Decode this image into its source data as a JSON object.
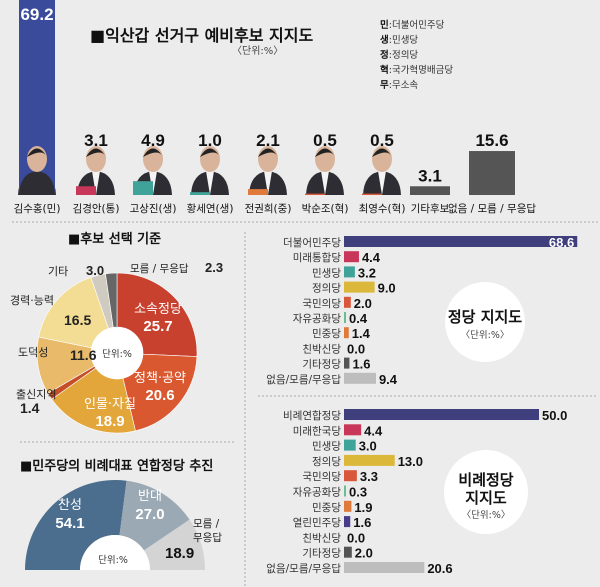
{
  "candidates_chart": {
    "title": "■익산갑 선거구 예비후보 지지도",
    "unit": "〈단위:%〉",
    "legend": [
      {
        "abbr": "민",
        "party": "더불어민주당"
      },
      {
        "abbr": "생",
        "party": "민생당"
      },
      {
        "abbr": "정",
        "party": "정의당"
      },
      {
        "abbr": "혁",
        "party": "국가혁명배금당"
      },
      {
        "abbr": "무",
        "party": "무소속"
      }
    ]
  },
  "criteria_chart": {
    "title": "■후보 선택 기준",
    "unit": "단위:%"
  },
  "party_chart": {
    "title": "정당 지지도",
    "unit": "〈단위:%〉"
  },
  "pr_chart": {
    "title_line1": "비례정당",
    "title_line2": "지지도",
    "unit": "〈단위:%〉"
  },
  "coalition_chart": {
    "title": "■민주당의 비례대표 연합정당 추진",
    "unit": "단위:%"
  },
  "chart_data": [
    {
      "type": "bar",
      "title": "■익산갑 선거구 예비후보 지지도",
      "categories": [
        "김수홍(민)",
        "김경안(통)",
        "고상진(생)",
        "황세연(생)",
        "전권희(중)",
        "박순조(혁)",
        "최영수(혁)",
        "기타후보",
        "없음 / 모름 / 무응답"
      ],
      "values": [
        69.2,
        3.1,
        4.9,
        1.0,
        2.1,
        0.5,
        0.5,
        3.1,
        15.6
      ],
      "labels": [
        "69.2",
        "3.1",
        "4.9",
        "1.0",
        "2.1",
        "0.5",
        "0.5",
        "3.1",
        "15.6"
      ],
      "colors": [
        "#3b4b9c",
        "#c8375a",
        "#3fa39a",
        "#3fa39a",
        "#e07a3a",
        "#d9573a",
        "#d9573a",
        "#555555",
        "#555555"
      ],
      "has_photo": [
        true,
        true,
        true,
        true,
        true,
        true,
        true,
        false,
        false
      ]
    },
    {
      "type": "pie",
      "title": "■후보 선택 기준",
      "categories": [
        "소속정당",
        "정책·공약",
        "인물·자질",
        "출신지역",
        "도덕성",
        "경력·능력",
        "기타",
        "모름 / 무응답"
      ],
      "values": [
        25.7,
        20.6,
        18.9,
        1.4,
        11.6,
        16.5,
        3.0,
        2.3
      ],
      "labels": [
        "25.7",
        "20.6",
        "18.9",
        "1.4",
        "11.6",
        "16.5",
        "3.0",
        "2.3"
      ],
      "colors": [
        "#c8402e",
        "#d9582f",
        "#e3a63b",
        "#c4502a",
        "#e9ba6a",
        "#f3dc93",
        "#cfcbc0",
        "#666666"
      ]
    },
    {
      "type": "bar",
      "orientation": "horizontal",
      "title": "정당 지지도",
      "categories": [
        "더불어민주당",
        "미래통합당",
        "민생당",
        "정의당",
        "국민의당",
        "자유공화당",
        "민중당",
        "친박신당",
        "기타정당",
        "없음/모름/무응답"
      ],
      "values": [
        68.6,
        4.4,
        3.2,
        9.0,
        2.0,
        0.4,
        1.4,
        0.0,
        1.6,
        9.4
      ],
      "labels": [
        "68.6",
        "4.4",
        "3.2",
        "9.0",
        "2.0",
        "0.4",
        "1.4",
        "0.0",
        "1.6",
        "9.4"
      ],
      "colors": [
        "#3f3f7e",
        "#c8375a",
        "#3fa39a",
        "#dcb83a",
        "#d9573a",
        "#6bbf8f",
        "#e07a3a",
        "#888888",
        "#555555",
        "#bdbdbd"
      ]
    },
    {
      "type": "bar",
      "orientation": "horizontal",
      "title": "비례정당 지지도",
      "categories": [
        "비례연합정당",
        "미래한국당",
        "민생당",
        "정의당",
        "국민의당",
        "자유공화당",
        "민중당",
        "열린민주당",
        "친박신당",
        "기타정당",
        "없음/모름/무응답"
      ],
      "values": [
        50.0,
        4.4,
        3.0,
        13.0,
        3.3,
        0.3,
        1.9,
        1.6,
        0.0,
        2.0,
        20.6
      ],
      "labels": [
        "50.0",
        "4.4",
        "3.0",
        "13.0",
        "3.3",
        "0.3",
        "1.9",
        "1.6",
        "0.0",
        "2.0",
        "20.6"
      ],
      "colors": [
        "#3f3f7e",
        "#c8375a",
        "#3fa39a",
        "#dcb83a",
        "#d9573a",
        "#6bbf8f",
        "#e07a3a",
        "#4a3a8a",
        "#888888",
        "#555555",
        "#bdbdbd"
      ]
    },
    {
      "type": "pie",
      "shape": "half-donut",
      "title": "■민주당의 비례대표 연합정당 추진",
      "categories": [
        "찬성",
        "반대",
        "모름 / 무응답"
      ],
      "values": [
        54.1,
        27.0,
        18.9
      ],
      "labels": [
        "54.1",
        "27.0",
        "18.9"
      ],
      "colors": [
        "#4b6e8e",
        "#9ba9b4",
        "#d4d4d4"
      ]
    }
  ]
}
